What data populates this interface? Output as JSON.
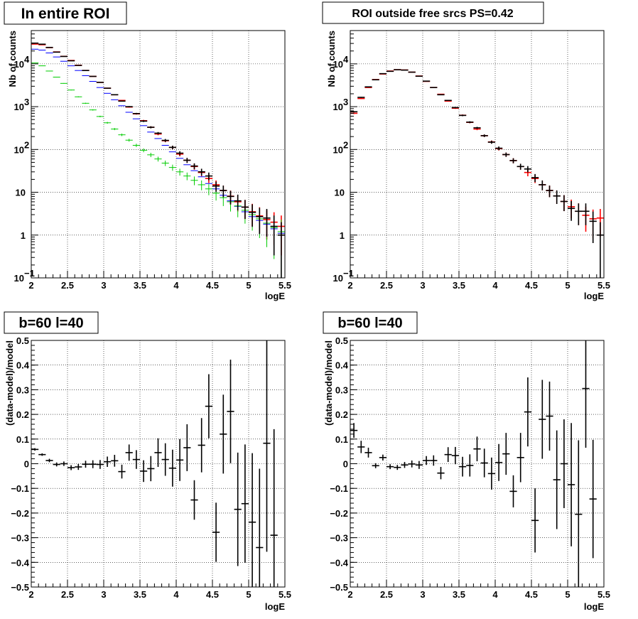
{
  "chart_data": [
    {
      "type": "scatter",
      "title": "In entire ROI",
      "xlabel": "logE",
      "ylabel": "Nb of counts",
      "yscale": "log",
      "xlim": [
        2,
        5.5
      ],
      "ylim": [
        0.1,
        60000
      ],
      "grid": true,
      "x_ticks": [
        "2",
        "2.5",
        "3",
        "3.5",
        "4",
        "4.5",
        "5",
        "5.5"
      ],
      "y_ticks": [
        {
          "base": "10",
          "exp": "−1",
          "value": 0.1
        },
        {
          "base": "1",
          "exp": "",
          "value": 1
        },
        {
          "base": "10",
          "exp": "",
          "value": 10
        },
        {
          "base": "10",
          "exp": "2",
          "value": 100
        },
        {
          "base": "10",
          "exp": "3",
          "value": 1000
        },
        {
          "base": "10",
          "exp": "4",
          "value": 10000
        }
      ],
      "x": [
        2.05,
        2.15,
        2.25,
        2.35,
        2.45,
        2.55,
        2.65,
        2.75,
        2.85,
        2.95,
        3.05,
        3.15,
        3.25,
        3.35,
        3.45,
        3.55,
        3.65,
        3.75,
        3.85,
        3.95,
        4.05,
        4.15,
        4.25,
        4.35,
        4.45,
        4.55,
        4.65,
        4.75,
        4.85,
        4.95,
        5.05,
        5.15,
        5.25,
        5.35,
        5.45
      ],
      "series": [
        {
          "color": "#ff0000",
          "values": [
            29000,
            28000,
            24000,
            19000,
            15000,
            12000,
            9300,
            7000,
            5100,
            3700,
            2700,
            1900,
            1400,
            980,
            680,
            470,
            330,
            230,
            160,
            112,
            78,
            56,
            40,
            29,
            21,
            15,
            11,
            8.1,
            6.0,
            4.5,
            3.5,
            2.8,
            2.3,
            2.0,
            1.6
          ],
          "errorbars": true
        },
        {
          "color": "#0000ff",
          "values": [
            22000,
            21000,
            18000,
            14500,
            11500,
            9000,
            7000,
            5300,
            3900,
            2800,
            2050,
            1450,
            1050,
            740,
            520,
            360,
            255,
            180,
            125,
            88,
            62,
            44,
            32,
            23,
            16,
            12,
            8.5,
            6.3,
            4.7,
            3.5,
            2.7,
            2.2,
            1.8,
            1.4,
            1.1
          ]
        },
        {
          "color": "#00cc00",
          "values": [
            10500,
            9000,
            6800,
            4900,
            3500,
            2450,
            1700,
            1200,
            840,
            590,
            420,
            300,
            220,
            165,
            125,
            96,
            75,
            60,
            48,
            38,
            30,
            24,
            19,
            15,
            12,
            9.5,
            7.5,
            6.0,
            4.8,
            3.8,
            3.0,
            2.4,
            1.9,
            1.5,
            1.2
          ],
          "errorbars": true
        },
        {
          "color": "#000000",
          "values": [
            30500,
            28800,
            24200,
            18800,
            14900,
            11800,
            9200,
            7000,
            5100,
            3700,
            2700,
            1900,
            1350,
            1000,
            690,
            460,
            330,
            240,
            163,
            112,
            82,
            56,
            41,
            30,
            24,
            14,
            11,
            8.0,
            6.3,
            4.5,
            3.4,
            2.7,
            2.5,
            1.6,
            1.0
          ],
          "errorbars": true
        }
      ]
    },
    {
      "type": "scatter",
      "title": "ROI outside free srcs PS=0.42",
      "xlabel": "logE",
      "ylabel": "Nb of counts",
      "yscale": "log",
      "xlim": [
        2,
        5.5
      ],
      "ylim": [
        0.1,
        60000
      ],
      "grid": true,
      "x_ticks": [
        "2",
        "2.5",
        "3",
        "3.5",
        "4",
        "4.5",
        "5",
        "5.5"
      ],
      "y_ticks": [
        {
          "base": "10",
          "exp": "−1",
          "value": 0.1
        },
        {
          "base": "1",
          "exp": "",
          "value": 1
        },
        {
          "base": "10",
          "exp": "",
          "value": 10
        },
        {
          "base": "10",
          "exp": "2",
          "value": 100
        },
        {
          "base": "10",
          "exp": "3",
          "value": 1000
        },
        {
          "base": "10",
          "exp": "4",
          "value": 10000
        }
      ],
      "x": [
        2.05,
        2.15,
        2.25,
        2.35,
        2.45,
        2.55,
        2.65,
        2.75,
        2.85,
        2.95,
        3.05,
        3.15,
        3.25,
        3.35,
        3.45,
        3.55,
        3.65,
        3.75,
        3.85,
        3.95,
        4.05,
        4.15,
        4.25,
        4.35,
        4.45,
        4.55,
        4.65,
        4.75,
        4.85,
        4.95,
        5.05,
        5.15,
        5.25,
        5.35,
        5.45
      ],
      "series": [
        {
          "color": "#ff0000",
          "values": [
            700,
            1550,
            2800,
            4300,
            5800,
            6800,
            7300,
            7200,
            6400,
            5200,
            3900,
            2800,
            1950,
            1350,
            920,
            630,
            430,
            300,
            210,
            150,
            105,
            76,
            55,
            40,
            29,
            21,
            15,
            11,
            8.2,
            6.1,
            4.6,
            3.6,
            2.9,
            2.4,
            2.5
          ],
          "errorbars": true
        },
        {
          "color": "#000000",
          "values": [
            760,
            1650,
            2900,
            4250,
            5900,
            6700,
            7300,
            7150,
            6400,
            5150,
            3950,
            2800,
            1900,
            1400,
            950,
            625,
            435,
            320,
            210,
            148,
            107,
            76,
            55,
            40,
            35,
            22,
            15,
            11,
            8.2,
            6.1,
            4.2,
            3.6,
            3.6,
            2.1,
            1.0
          ],
          "errorbars": true
        }
      ]
    },
    {
      "type": "scatter",
      "title": "b=60 l=40",
      "xlabel": "logE",
      "ylabel": "(data-model)/model",
      "xlim": [
        2,
        5.5
      ],
      "ylim": [
        -0.5,
        0.5
      ],
      "grid": true,
      "x_ticks": [
        "2",
        "2.5",
        "3",
        "3.5",
        "4",
        "4.5",
        "5",
        "5.5"
      ],
      "y_ticks": [
        "−0.5",
        "−0.4",
        "−0.3",
        "−0.2",
        "−0.1",
        "0",
        "0.1",
        "0.2",
        "0.3",
        "0.4",
        "0.5"
      ],
      "x": [
        2.05,
        2.15,
        2.25,
        2.35,
        2.45,
        2.55,
        2.65,
        2.75,
        2.85,
        2.95,
        3.05,
        3.15,
        3.25,
        3.35,
        3.45,
        3.55,
        3.65,
        3.75,
        3.85,
        3.95,
        4.05,
        4.15,
        4.25,
        4.35,
        4.45,
        4.55,
        4.65,
        4.75,
        4.85,
        4.95,
        5.05,
        5.15,
        5.25,
        5.35,
        5.45
      ],
      "series": [
        {
          "color": "#000000",
          "values": [
            0.058,
            0.037,
            0.013,
            -0.003,
            0.0,
            -0.016,
            -0.013,
            -0.002,
            -0.002,
            -0.003,
            0.008,
            0.012,
            -0.032,
            0.045,
            0.017,
            -0.03,
            -0.02,
            0.045,
            0.017,
            -0.018,
            0.015,
            0.065,
            -0.147,
            0.075,
            0.233,
            -0.278,
            0.12,
            0.212,
            -0.185,
            -0.162,
            -0.237,
            -0.34,
            0.083,
            -0.29,
            null
          ],
          "yerr": [
            0.005,
            0.005,
            0.007,
            0.008,
            0.009,
            0.01,
            0.012,
            0.014,
            0.016,
            0.018,
            0.021,
            0.024,
            0.028,
            0.033,
            0.038,
            0.044,
            0.051,
            0.058,
            0.066,
            0.075,
            0.085,
            0.095,
            0.08,
            0.11,
            0.13,
            0.12,
            0.16,
            0.21,
            0.23,
            0.24,
            0.28,
            0.32,
            0.44,
            0.43,
            0
          ]
        }
      ]
    },
    {
      "type": "scatter",
      "title": "b=60 l=40",
      "xlabel": "logE",
      "ylabel": "(data-model)/model",
      "xlim": [
        2,
        5.5
      ],
      "ylim": [
        -0.5,
        0.5
      ],
      "grid": true,
      "x_ticks": [
        "2",
        "2.5",
        "3",
        "3.5",
        "4",
        "4.5",
        "5",
        "5.5"
      ],
      "y_ticks": [
        "−0.5",
        "−0.4",
        "−0.3",
        "−0.2",
        "−0.1",
        "0",
        "0.1",
        "0.2",
        "0.3",
        "0.4",
        "0.5"
      ],
      "x": [
        2.05,
        2.15,
        2.25,
        2.35,
        2.45,
        2.55,
        2.65,
        2.75,
        2.85,
        2.95,
        3.05,
        3.15,
        3.25,
        3.35,
        3.45,
        3.55,
        3.65,
        3.75,
        3.85,
        3.95,
        4.05,
        4.15,
        4.25,
        4.35,
        4.45,
        4.55,
        4.65,
        4.75,
        4.85,
        4.95,
        5.05,
        5.15,
        5.25,
        5.35,
        5.45
      ],
      "series": [
        {
          "color": "#000000",
          "values": [
            0.135,
            0.068,
            0.045,
            -0.008,
            0.025,
            -0.012,
            -0.015,
            -0.005,
            -0.001,
            -0.005,
            0.013,
            0.013,
            -0.038,
            0.037,
            0.033,
            -0.012,
            -0.007,
            0.06,
            0.003,
            -0.04,
            0.005,
            0.04,
            -0.112,
            0.025,
            0.21,
            -0.23,
            0.18,
            0.193,
            -0.065,
            0.0,
            -0.085,
            -0.205,
            0.305,
            -0.143,
            null
          ],
          "yerr": [
            0.03,
            0.025,
            0.02,
            0.01,
            0.012,
            0.01,
            0.01,
            0.012,
            0.014,
            0.016,
            0.018,
            0.021,
            0.025,
            0.03,
            0.035,
            0.04,
            0.045,
            0.05,
            0.058,
            0.065,
            0.075,
            0.085,
            0.065,
            0.1,
            0.14,
            0.13,
            0.16,
            0.14,
            0.2,
            0.18,
            0.25,
            0.3,
            0.24,
            0.24,
            0
          ]
        }
      ]
    }
  ]
}
